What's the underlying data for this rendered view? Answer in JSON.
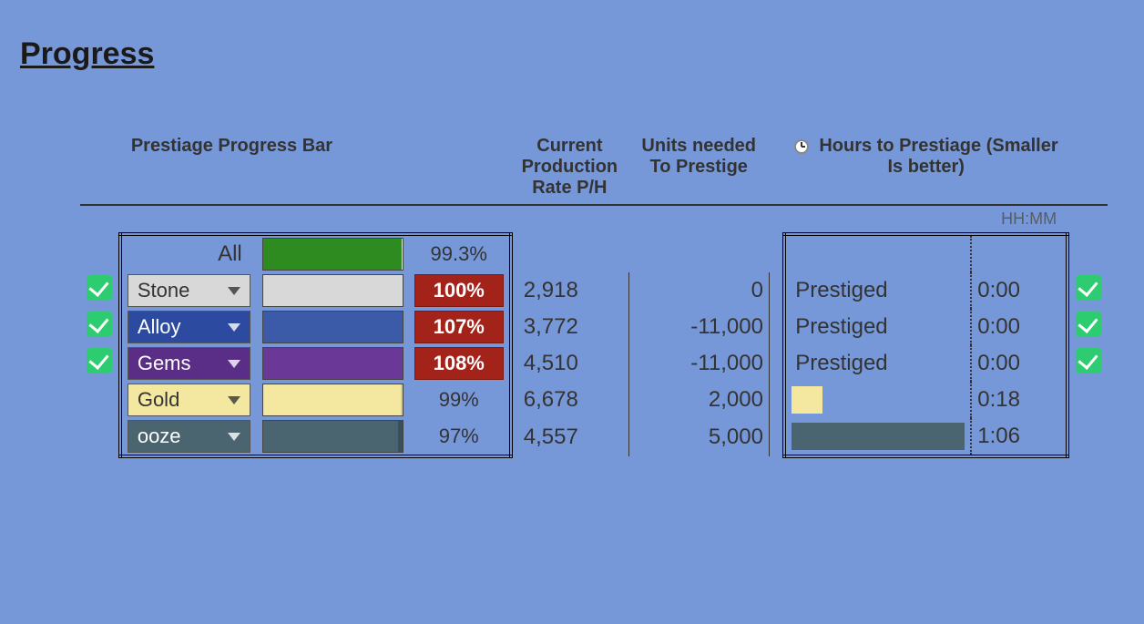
{
  "title": "Progress",
  "headers": {
    "progress": "Prestiage Progress Bar",
    "rate": "Current Production Rate P/H",
    "units": "Units needed To Prestige",
    "hours": "Hours to Prestiage (Smaller Is better)",
    "hhmm": "HH:MM"
  },
  "colors": {
    "page_bg": "#7798d8",
    "check_bg": "#2ecc71",
    "pct_red_bg": "#a32219",
    "pct_red_text": "#ffffff",
    "border": "#000000"
  },
  "all_row": {
    "label": "All",
    "pct_text": "99.3%",
    "pct_value": 99.3,
    "bar_fill_color": "#2e8b20",
    "bar_track_color": "#ffffff"
  },
  "rows": [
    {
      "label": "Stone",
      "dd_bg": "#d8d8d8",
      "dd_text_light": true,
      "bar_fill_color": "#d8d8d8",
      "bar_track_color": "#f0f0f0",
      "pct_text": "100%",
      "pct_over": true,
      "pct_value": 100,
      "rate": "2,918",
      "units": "0",
      "hours_label": "Prestiged",
      "hours_bar_color": null,
      "hours_bar_pct": 0,
      "hhmm": "0:00",
      "check_left": true,
      "check_right": true
    },
    {
      "label": "Alloy",
      "dd_bg": "#2b4aa0",
      "dd_text_light": false,
      "bar_fill_color": "#3b5ba8",
      "bar_track_color": "#2d3560",
      "pct_text": "107%",
      "pct_over": true,
      "pct_value": 100,
      "rate": "3,772",
      "units": "-11,000",
      "hours_label": "Prestiged",
      "hours_bar_color": null,
      "hours_bar_pct": 0,
      "hhmm": "0:00",
      "check_left": true,
      "check_right": true
    },
    {
      "label": "Gems",
      "dd_bg": "#5a2e86",
      "dd_text_light": false,
      "bar_fill_color": "#6a3896",
      "bar_track_color": "#3d2358",
      "pct_text": "108%",
      "pct_over": true,
      "pct_value": 100,
      "rate": "4,510",
      "units": "-11,000",
      "hours_label": "Prestiged",
      "hours_bar_color": null,
      "hours_bar_pct": 0,
      "hhmm": "0:00",
      "check_left": true,
      "check_right": true
    },
    {
      "label": "Gold",
      "dd_bg": "#f4e8a0",
      "dd_text_light": true,
      "bar_fill_color": "#f4e8a0",
      "bar_track_color": "#d8cf8f",
      "pct_text": "99%",
      "pct_over": false,
      "pct_value": 99,
      "rate": "6,678",
      "units": "2,000",
      "hours_label": "",
      "hours_bar_color": "#f4e8a0",
      "hours_bar_pct": 18,
      "hhmm": "0:18",
      "check_left": false,
      "check_right": false
    },
    {
      "label": "ooze",
      "dd_bg": "#4a6470",
      "dd_text_light": false,
      "bar_fill_color": "#4a6470",
      "bar_track_color": "#37505a",
      "pct_text": "97%",
      "pct_over": false,
      "pct_value": 97,
      "rate": "4,557",
      "units": "5,000",
      "hours_label": "",
      "hours_bar_color": "#4a6470",
      "hours_bar_pct": 100,
      "hhmm": "1:06",
      "check_left": false,
      "check_right": false
    }
  ]
}
